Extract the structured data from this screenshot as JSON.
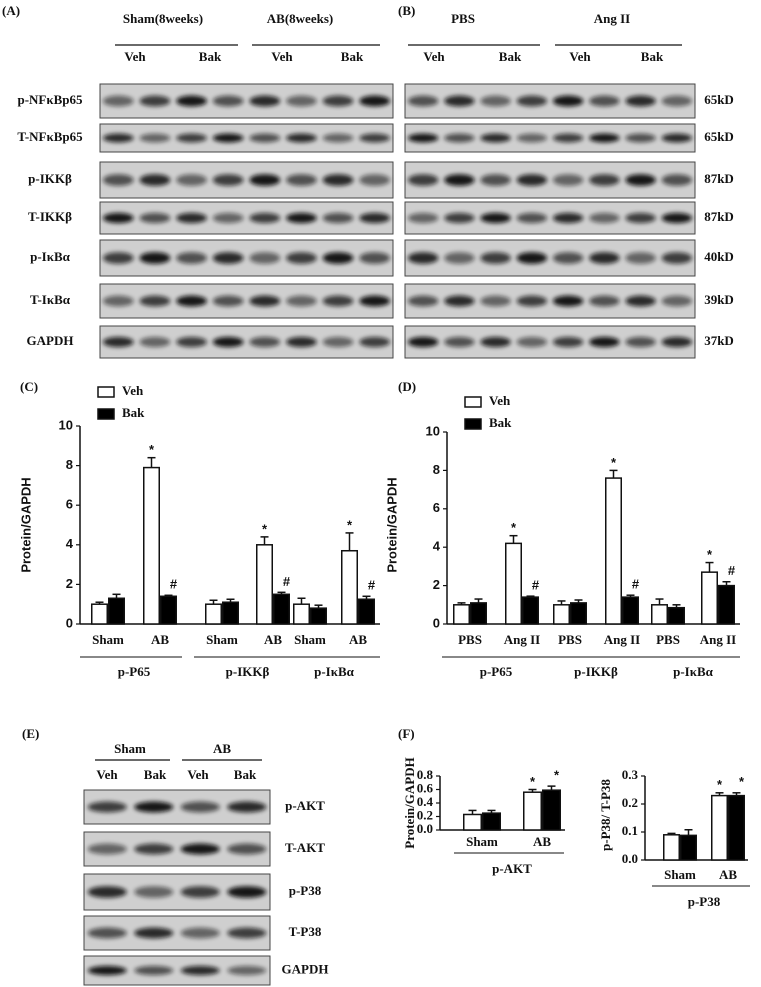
{
  "panel_labels": [
    "(A)",
    "(B)",
    "(C)",
    "(D)",
    "(E)",
    "(F)"
  ],
  "blots": [
    {
      "groups": [
        "Sham(8weeks)",
        "AB(8weeks)"
      ],
      "lanes": [
        "Veh",
        "Bak",
        "Veh",
        "Bak"
      ],
      "rows": [
        "p-NFκBp65",
        "T-NFκBp65",
        "p-IKKβ",
        "T-IKKβ",
        "p-IκBα",
        "T-IκBα",
        "GAPDH"
      ]
    },
    {
      "groups": [
        "PBS",
        "Ang II"
      ],
      "lanes": [
        "Veh",
        "Bak",
        "Veh",
        "Bak"
      ],
      "sizes": [
        "65kD",
        "65kD",
        "87kD",
        "87kD",
        "40kD",
        "39kD",
        "37kD"
      ]
    },
    {
      "groups": [
        "Sham",
        "AB"
      ],
      "lanes": [
        "Veh",
        "Bak",
        "Veh",
        "Bak"
      ],
      "rows": [
        "p-AKT",
        "T-AKT",
        "p-P38",
        "T-P38",
        "GAPDH"
      ]
    }
  ],
  "chart_data": [
    {
      "type": "bar",
      "y_label": "Protein/GAPDH",
      "legend": true,
      "categories": [
        "Sham",
        "AB",
        "Sham",
        "AB",
        "Sham",
        "AB"
      ],
      "groups": [
        "p-P65",
        "p-IKKβ",
        "p-IκBα"
      ],
      "ylim": [
        0,
        10
      ],
      "yticks": [
        0,
        2,
        4,
        6,
        8,
        10
      ],
      "series": [
        {
          "name": "Veh",
          "color": "#ffffff",
          "values": [
            1.0,
            7.9,
            1.0,
            4.0,
            1.0,
            3.7
          ],
          "errors": [
            0.1,
            0.5,
            0.2,
            0.4,
            0.3,
            0.9
          ],
          "markers": [
            null,
            "*",
            null,
            "*",
            null,
            "*"
          ]
        },
        {
          "name": "Bak",
          "color": "#000000",
          "values": [
            1.3,
            1.4,
            1.1,
            1.5,
            0.8,
            1.25
          ],
          "errors": [
            0.2,
            0.05,
            0.15,
            0.1,
            0.15,
            0.15
          ],
          "markers": [
            null,
            "#",
            null,
            "#",
            null,
            "#"
          ]
        }
      ]
    },
    {
      "type": "bar",
      "y_label": "Protein/GAPDH",
      "legend": true,
      "categories": [
        "PBS",
        "Ang II",
        "PBS",
        "Ang II",
        "PBS",
        "Ang II"
      ],
      "groups": [
        "p-P65",
        "p-IKKβ",
        "p-IκBα"
      ],
      "ylim": [
        0,
        10
      ],
      "yticks": [
        0,
        2,
        4,
        6,
        8,
        10
      ],
      "series": [
        {
          "name": "Veh",
          "color": "#ffffff",
          "values": [
            1.0,
            4.2,
            1.0,
            7.6,
            1.0,
            2.7
          ],
          "errors": [
            0.1,
            0.4,
            0.2,
            0.4,
            0.3,
            0.5
          ],
          "markers": [
            null,
            "*",
            null,
            "*",
            null,
            "*"
          ]
        },
        {
          "name": "Bak",
          "color": "#000000",
          "values": [
            1.1,
            1.4,
            1.1,
            1.4,
            0.85,
            2.0
          ],
          "errors": [
            0.2,
            0.05,
            0.15,
            0.1,
            0.15,
            0.2
          ],
          "markers": [
            null,
            "#",
            null,
            "#",
            null,
            "#"
          ]
        }
      ]
    },
    {
      "type": "bar",
      "y_label": "Protein/GAPDH",
      "legend": false,
      "categories": [
        "Sham",
        "AB"
      ],
      "groups": [
        "p-AKT"
      ],
      "ylim": [
        0,
        0.8
      ],
      "yticks": [
        {
          "value": 0,
          "label": "0.0"
        },
        0.2,
        0.4,
        0.6,
        0.8
      ],
      "series": [
        {
          "color": "#ffffff",
          "values": [
            0.23,
            0.56
          ],
          "errors": [
            0.06,
            0.04
          ],
          "markers": [
            null,
            "*"
          ]
        },
        {
          "color": "#000000",
          "values": [
            0.25,
            0.59
          ],
          "errors": [
            0.04,
            0.06
          ],
          "markers": [
            null,
            "*"
          ]
        }
      ]
    },
    {
      "type": "bar",
      "y_label": "p-P38/ T-P38",
      "legend": false,
      "categories": [
        "Sham",
        "AB"
      ],
      "groups": [
        "p-P38"
      ],
      "ylim": [
        0,
        0.3
      ],
      "yticks": [
        {
          "value": 0,
          "label": "0.0"
        },
        0.1,
        0.2,
        0.3
      ],
      "series": [
        {
          "color": "#ffffff",
          "values": [
            0.09,
            0.23
          ],
          "errors": [
            0.005,
            0.01
          ],
          "markers": [
            null,
            "*"
          ]
        },
        {
          "color": "#000000",
          "values": [
            0.088,
            0.23
          ],
          "errors": [
            0.02,
            0.01
          ],
          "markers": [
            null,
            "*"
          ]
        }
      ]
    }
  ]
}
